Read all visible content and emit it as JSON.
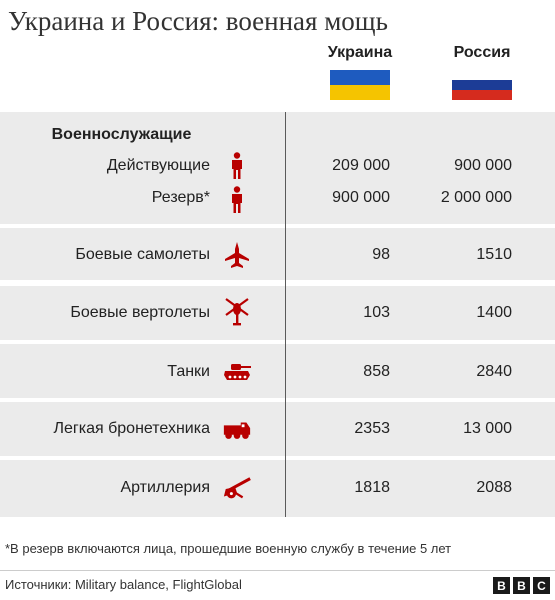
{
  "title": "Украина и Россия: военная мощь",
  "countries": {
    "ukraine": "Украина",
    "russia": "Россия"
  },
  "colors": {
    "icon_red": "#b80000",
    "ukraine_blue": "#1e5bbf",
    "ukraine_yellow": "#f5c400",
    "russia_white": "#ffffff",
    "russia_blue": "#1c3c96",
    "russia_red": "#d52b1e",
    "shade": "#ebebeb"
  },
  "chart_data": {
    "type": "table",
    "title": "Украина и Россия: военная мощь",
    "columns": [
      "Украина",
      "Россия"
    ],
    "group_label": "Военнослужащие",
    "rows": [
      {
        "label": "Действующие",
        "icon": "soldier-icon",
        "ukraine": "209 000",
        "russia": "900 000"
      },
      {
        "label": "Резерв*",
        "icon": "soldier-icon",
        "ukraine": "900 000",
        "russia": "2 000 000"
      },
      {
        "label": "Боевые самолеты",
        "icon": "fighter-jet-icon",
        "ukraine": "98",
        "russia": "1510"
      },
      {
        "label": "Боевые вертолеты",
        "icon": "helicopter-icon",
        "ukraine": "103",
        "russia": "1400"
      },
      {
        "label": "Танки",
        "icon": "tank-icon",
        "ukraine": "858",
        "russia": "2840"
      },
      {
        "label": "Легкая бронетехника",
        "icon": "armored-vehicle-icon",
        "ukraine": "2353",
        "russia": "13 000"
      },
      {
        "label": "Артиллерия",
        "icon": "artillery-icon",
        "ukraine": "1818",
        "russia": "2088"
      }
    ]
  },
  "footnote": "*В резерв включаются лица, прошедшие военную службу в течение 5 лет",
  "source": "Источники: Military balance, FlightGlobal",
  "logo": [
    "B",
    "B",
    "C"
  ]
}
